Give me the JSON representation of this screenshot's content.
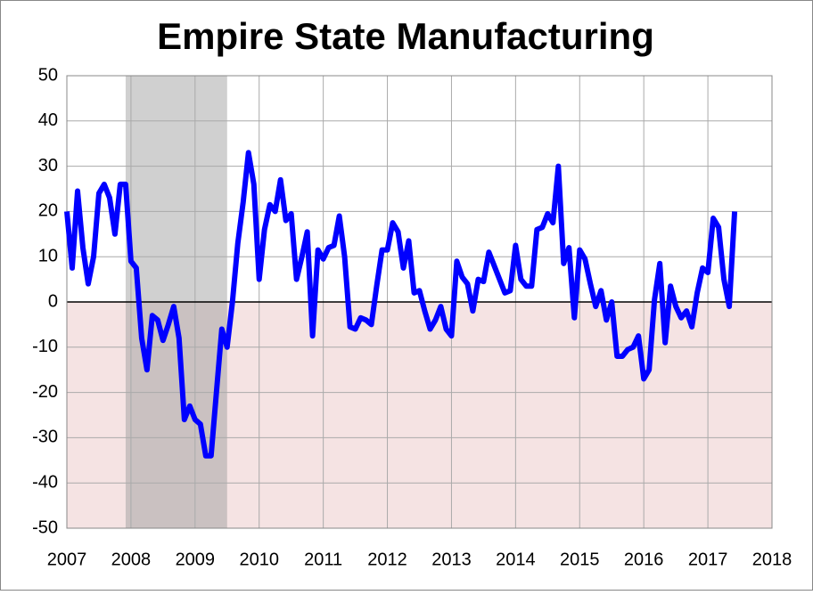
{
  "chart_data": {
    "type": "line",
    "title": "Empire State Manufacturing",
    "x": [
      2007,
      2007.083,
      2007.167,
      2007.25,
      2007.333,
      2007.417,
      2007.5,
      2007.583,
      2007.667,
      2007.75,
      2007.833,
      2007.917,
      2008,
      2008.083,
      2008.167,
      2008.25,
      2008.333,
      2008.417,
      2008.5,
      2008.583,
      2008.667,
      2008.75,
      2008.833,
      2008.917,
      2009,
      2009.083,
      2009.167,
      2009.25,
      2009.333,
      2009.417,
      2009.5,
      2009.583,
      2009.667,
      2009.75,
      2009.833,
      2009.917,
      2010,
      2010.083,
      2010.167,
      2010.25,
      2010.333,
      2010.417,
      2010.5,
      2010.583,
      2010.667,
      2010.75,
      2010.833,
      2010.917,
      2011,
      2011.083,
      2011.167,
      2011.25,
      2011.333,
      2011.417,
      2011.5,
      2011.583,
      2011.667,
      2011.75,
      2011.833,
      2011.917,
      2012,
      2012.083,
      2012.167,
      2012.25,
      2012.333,
      2012.417,
      2012.5,
      2012.583,
      2012.667,
      2012.75,
      2012.833,
      2012.917,
      2013,
      2013.083,
      2013.167,
      2013.25,
      2013.333,
      2013.417,
      2013.5,
      2013.583,
      2013.667,
      2013.75,
      2013.833,
      2013.917,
      2014,
      2014.083,
      2014.167,
      2014.25,
      2014.333,
      2014.417,
      2014.5,
      2014.583,
      2014.667,
      2014.75,
      2014.833,
      2014.917,
      2015,
      2015.083,
      2015.167,
      2015.25,
      2015.333,
      2015.417,
      2015.5,
      2015.583,
      2015.667,
      2015.75,
      2015.833,
      2015.917,
      2016,
      2016.083,
      2016.167,
      2016.25,
      2016.333,
      2016.417,
      2016.5,
      2016.583,
      2016.667,
      2016.75,
      2016.833,
      2016.917,
      2017,
      2017.083,
      2017.167,
      2017.25,
      2017.333,
      2017.417
    ],
    "series": [
      {
        "color": "#0000ff",
        "values": [
          20,
          7.5,
          24.5,
          12,
          4,
          10,
          24,
          26,
          23,
          15,
          26,
          26,
          9,
          7.5,
          -8,
          -15,
          -3,
          -4,
          -8.5,
          -5,
          -1,
          -8,
          -26,
          -23,
          -26,
          -27,
          -34,
          -34,
          -20,
          -6,
          -10,
          0,
          13,
          22,
          33,
          26,
          5,
          16,
          21.5,
          20,
          27,
          18,
          19.5,
          5,
          10,
          15.5,
          -7.5,
          11.5,
          9.5,
          12,
          12.5,
          19,
          10,
          -5.5,
          -6,
          -3.5,
          -4,
          -5,
          3.5,
          11.5,
          11.5,
          17.5,
          15.5,
          7.5,
          13.5,
          2,
          2.5,
          -2,
          -6,
          -4,
          -1,
          -6,
          -7.5,
          9,
          5.5,
          4,
          -2,
          5,
          4.5,
          11,
          8,
          5,
          2,
          2.5,
          12.5,
          5,
          3.5,
          3.5,
          16,
          16.5,
          19.5,
          17.5,
          30,
          8.5,
          12,
          -3.5,
          11.5,
          9.5,
          4,
          -1,
          2.5,
          -4,
          0,
          -12,
          -12,
          -10.5,
          -10,
          -7.5,
          -17,
          -15,
          0.5,
          8.5,
          -9,
          3.5,
          -1,
          -3.5,
          -2,
          -5.5,
          2,
          7.5,
          6.5,
          18.5,
          16.5,
          5,
          -1,
          20
        ]
      }
    ],
    "recession": [
      2007.917,
      2009.5
    ],
    "xlim": [
      2007,
      2018
    ],
    "xticks": [
      2007,
      2008,
      2009,
      2010,
      2011,
      2012,
      2013,
      2014,
      2015,
      2016,
      2017,
      2018
    ],
    "ylim": [
      -50,
      50
    ],
    "yticks": [
      -50,
      -40,
      -30,
      -20,
      -10,
      0,
      10,
      20,
      30,
      40,
      50
    ],
    "grid": true
  }
}
